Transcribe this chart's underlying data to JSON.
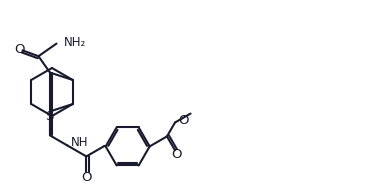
{
  "bg_color": "#ffffff",
  "line_color": "#1a1a2e",
  "lw": 1.5,
  "fs": 8.5,
  "xlim": [
    0,
    3.82
  ],
  "ylim": [
    0,
    1.87
  ]
}
